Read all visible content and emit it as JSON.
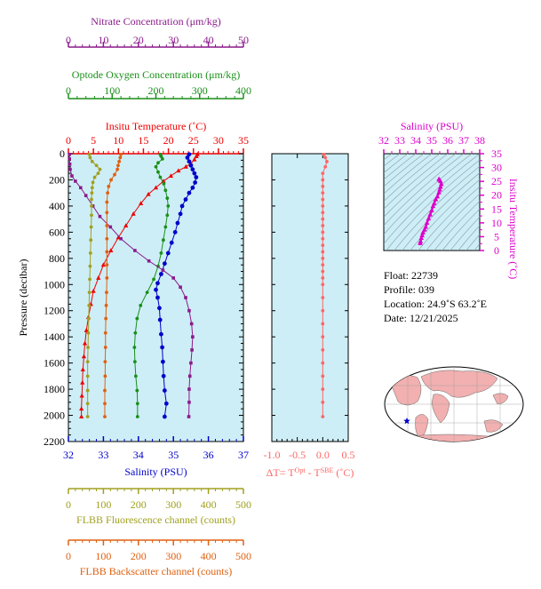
{
  "chart_data": {
    "type": "scatter",
    "main_profile": {
      "ylabel": "Pressure (decibar)",
      "y_ticks": [
        0,
        200,
        400,
        600,
        800,
        1000,
        1200,
        1400,
        1600,
        1800,
        2000,
        2200
      ],
      "ylim": [
        0,
        2200
      ],
      "axes": {
        "nitrate": {
          "label": "Nitrate Concentration (μm/kg)",
          "range": [
            0,
            50
          ],
          "ticks": [
            0,
            10,
            20,
            30,
            40,
            50
          ],
          "color": "#8b1a8b"
        },
        "oxygen": {
          "label": "Optode Oxygen Concentration (μm/kg)",
          "range": [
            0,
            400
          ],
          "ticks": [
            0,
            100,
            200,
            300,
            400
          ],
          "color": "#1a8f1a"
        },
        "temperature": {
          "label": "Insitu Temperature (˚C)",
          "range": [
            0,
            35
          ],
          "ticks": [
            0,
            5,
            10,
            15,
            20,
            25,
            30,
            35
          ],
          "color": "#ee0000"
        },
        "salinity": {
          "label": "Salinity (PSU)",
          "range": [
            32,
            37
          ],
          "ticks": [
            32,
            33,
            34,
            35,
            36,
            37
          ],
          "color": "#0000cc"
        },
        "fluorescence": {
          "label": "FLBB Fluorescence channel (counts)",
          "range": [
            0,
            500
          ],
          "ticks": [
            0,
            100,
            200,
            300,
            400,
            500
          ],
          "color": "#a0a020"
        },
        "backscatter": {
          "label": "FLBB Backscatter channel (counts)",
          "range": [
            0,
            500
          ],
          "ticks": [
            0,
            100,
            200,
            300,
            400,
            500
          ],
          "color": "#e06010"
        }
      },
      "series": [
        {
          "axis": "temperature",
          "color": "#ee0000",
          "points": [
            [
              25.8,
              5
            ],
            [
              25.6,
              20
            ],
            [
              25.2,
              45
            ],
            [
              24.5,
              75
            ],
            [
              23.5,
              100
            ],
            [
              22,
              130
            ],
            [
              20.5,
              170
            ],
            [
              19,
              210
            ],
            [
              17.5,
              260
            ],
            [
              16,
              310
            ],
            [
              14.5,
              380
            ],
            [
              13,
              460
            ],
            [
              11.5,
              550
            ],
            [
              10,
              640
            ],
            [
              8.5,
              740
            ],
            [
              7,
              850
            ],
            [
              6,
              950
            ],
            [
              5,
              1050
            ],
            [
              4.5,
              1150
            ],
            [
              4,
              1250
            ],
            [
              3.6,
              1350
            ],
            [
              3.3,
              1450
            ],
            [
              3.1,
              1550
            ],
            [
              2.9,
              1650
            ],
            [
              2.8,
              1750
            ],
            [
              2.7,
              1850
            ],
            [
              2.6,
              1950
            ],
            [
              2.6,
              2010
            ]
          ]
        },
        {
          "axis": "salinity",
          "color": "#0000cc",
          "points": [
            [
              35.45,
              5
            ],
            [
              35.4,
              30
            ],
            [
              35.45,
              60
            ],
            [
              35.5,
              90
            ],
            [
              35.55,
              120
            ],
            [
              35.6,
              150
            ],
            [
              35.65,
              180
            ],
            [
              35.62,
              220
            ],
            [
              35.55,
              260
            ],
            [
              35.45,
              300
            ],
            [
              35.35,
              350
            ],
            [
              35.25,
              400
            ],
            [
              35.2,
              460
            ],
            [
              35.12,
              530
            ],
            [
              35.05,
              600
            ],
            [
              34.95,
              680
            ],
            [
              34.85,
              760
            ],
            [
              34.75,
              840
            ],
            [
              34.65,
              920
            ],
            [
              34.55,
              990
            ],
            [
              34.5,
              1040
            ],
            [
              34.55,
              1100
            ],
            [
              34.6,
              1180
            ],
            [
              34.62,
              1270
            ],
            [
              34.65,
              1380
            ],
            [
              34.68,
              1480
            ],
            [
              34.7,
              1590
            ],
            [
              34.72,
              1700
            ],
            [
              34.75,
              1810
            ],
            [
              34.8,
              1910
            ],
            [
              34.75,
              2010
            ]
          ]
        },
        {
          "axis": "oxygen",
          "color": "#1a8f1a",
          "points": [
            [
              210,
              5
            ],
            [
              212,
              20
            ],
            [
              215,
              40
            ],
            [
              205,
              70
            ],
            [
              200,
              100
            ],
            [
              205,
              140
            ],
            [
              210,
              180
            ],
            [
              218,
              230
            ],
            [
              222,
              280
            ],
            [
              226,
              340
            ],
            [
              228,
              400
            ],
            [
              226,
              470
            ],
            [
              222,
              560
            ],
            [
              217,
              660
            ],
            [
              212,
              760
            ],
            [
              205,
              860
            ],
            [
              195,
              960
            ],
            [
              180,
              1060
            ],
            [
              165,
              1160
            ],
            [
              157,
              1260
            ],
            [
              153,
              1370
            ],
            [
              151,
              1480
            ],
            [
              152,
              1590
            ],
            [
              154,
              1700
            ],
            [
              157,
              1810
            ],
            [
              158,
              1910
            ],
            [
              158,
              2010
            ]
          ]
        },
        {
          "axis": "nitrate",
          "color": "#8b1a8b",
          "points": [
            [
              0.3,
              5
            ],
            [
              0.3,
              40
            ],
            [
              0.4,
              80
            ],
            [
              0.5,
              120
            ],
            [
              1,
              170
            ],
            [
              2,
              210
            ],
            [
              3.5,
              260
            ],
            [
              5,
              320
            ],
            [
              7,
              400
            ],
            [
              9,
              480
            ],
            [
              12,
              560
            ],
            [
              15,
              650
            ],
            [
              19,
              740
            ],
            [
              23,
              820
            ],
            [
              27,
              890
            ],
            [
              30,
              950
            ],
            [
              32,
              1020
            ],
            [
              33.5,
              1100
            ],
            [
              34.5,
              1200
            ],
            [
              35.2,
              1300
            ],
            [
              35.5,
              1400
            ],
            [
              35.3,
              1500
            ],
            [
              35,
              1600
            ],
            [
              34.7,
              1700
            ],
            [
              34.5,
              1800
            ],
            [
              34.5,
              1900
            ],
            [
              34.4,
              2010
            ]
          ]
        },
        {
          "axis": "fluorescence",
          "color": "#a0a020",
          "points": [
            [
              60,
              5
            ],
            [
              62,
              30
            ],
            [
              68,
              60
            ],
            [
              80,
              90
            ],
            [
              90,
              120
            ],
            [
              85,
              150
            ],
            [
              75,
              180
            ],
            [
              70,
              220
            ],
            [
              68,
              260
            ],
            [
              67,
              300
            ],
            [
              66,
              350
            ],
            [
              66,
              400
            ],
            [
              66,
              470
            ],
            [
              65,
              560
            ],
            [
              64,
              660
            ],
            [
              63,
              760
            ],
            [
              62,
              860
            ],
            [
              61,
              960
            ],
            [
              60,
              1060
            ],
            [
              59,
              1160
            ],
            [
              58,
              1260
            ],
            [
              57,
              1370
            ],
            [
              56,
              1480
            ],
            [
              55,
              1590
            ],
            [
              55,
              1700
            ],
            [
              55,
              1810
            ],
            [
              55,
              1910
            ],
            [
              55,
              2010
            ]
          ]
        },
        {
          "axis": "backscatter",
          "color": "#e06010",
          "points": [
            [
              150,
              5
            ],
            [
              148,
              30
            ],
            [
              145,
              60
            ],
            [
              142,
              90
            ],
            [
              140,
              120
            ],
            [
              132,
              160
            ],
            [
              122,
              200
            ],
            [
              115,
              250
            ],
            [
              112,
              300
            ],
            [
              110,
              370
            ],
            [
              110,
              450
            ],
            [
              110,
              550
            ],
            [
              110,
              650
            ],
            [
              110,
              750
            ],
            [
              110,
              850
            ],
            [
              110,
              950
            ],
            [
              109,
              1060
            ],
            [
              108,
              1160
            ],
            [
              107,
              1260
            ],
            [
              106,
              1370
            ],
            [
              106,
              1480
            ],
            [
              105,
              1590
            ],
            [
              105,
              1700
            ],
            [
              104,
              1810
            ],
            [
              104,
              1910
            ],
            [
              104,
              2010
            ]
          ]
        }
      ]
    },
    "delta_profile": {
      "xlabel": "ΔT= T",
      "xlabel_sup1": "Opt",
      "xlabel_mid": " - T",
      "xlabel_sup2": "SBE",
      "xlabel_end": " (˚C)",
      "xlim": [
        -1.0,
        0.5
      ],
      "ticks": [
        "-1.0",
        "-0.5",
        "0.0",
        "0.5"
      ],
      "tick_values": [
        -1.0,
        -0.5,
        0.0,
        0.5
      ],
      "color": "#ff6666",
      "points": [
        [
          0.02,
          5
        ],
        [
          0.05,
          30
        ],
        [
          0.08,
          60
        ],
        [
          0.05,
          100
        ],
        [
          0.0,
          150
        ],
        [
          0.0,
          200
        ],
        [
          0.0,
          250
        ],
        [
          0.0,
          300
        ],
        [
          0.0,
          350
        ],
        [
          0.0,
          400
        ],
        [
          0.0,
          450
        ],
        [
          0.0,
          500
        ],
        [
          0.0,
          550
        ],
        [
          0.0,
          600
        ],
        [
          0.0,
          650
        ],
        [
          0.0,
          700
        ],
        [
          0.0,
          750
        ],
        [
          0.0,
          800
        ],
        [
          0.0,
          850
        ],
        [
          0.0,
          900
        ],
        [
          0.0,
          950
        ],
        [
          0.0,
          1000
        ],
        [
          0.0,
          1100
        ],
        [
          0.0,
          1200
        ],
        [
          0.0,
          1300
        ],
        [
          0.0,
          1400
        ],
        [
          0.0,
          1500
        ],
        [
          0.0,
          1600
        ],
        [
          0.0,
          1700
        ],
        [
          0.0,
          1800
        ],
        [
          0.0,
          1900
        ],
        [
          0.0,
          2010
        ]
      ]
    },
    "ts_diagram": {
      "xlabel": "Salinity (PSU)",
      "ylabel": "Insitu Temperature (˚C)",
      "x_ticks": [
        32,
        33,
        34,
        35,
        36,
        37,
        38
      ],
      "y_ticks": [
        0,
        5,
        10,
        15,
        20,
        25,
        30,
        35
      ],
      "xlim": [
        32,
        38
      ],
      "ylim": [
        0,
        35
      ],
      "color": "#dd00cc",
      "points": [
        [
          34.28,
          2.6
        ],
        [
          34.3,
          3.3
        ],
        [
          34.35,
          4.5
        ],
        [
          34.4,
          5.5
        ],
        [
          34.45,
          6.5
        ],
        [
          34.55,
          7.5
        ],
        [
          34.62,
          8.5
        ],
        [
          34.7,
          10
        ],
        [
          34.8,
          11.5
        ],
        [
          34.9,
          13
        ],
        [
          35.0,
          14.5
        ],
        [
          35.08,
          16
        ],
        [
          35.15,
          17
        ],
        [
          35.25,
          18.5
        ],
        [
          35.35,
          19.5
        ],
        [
          35.45,
          21
        ],
        [
          35.5,
          22
        ],
        [
          35.55,
          23
        ],
        [
          35.6,
          24
        ],
        [
          35.55,
          25
        ],
        [
          35.5,
          25.5
        ],
        [
          35.45,
          25.8
        ]
      ]
    },
    "info": {
      "float_label": "Float:",
      "float_value": "22739",
      "profile_label": "Profile:",
      "profile_value": "039",
      "location_label": "Location:",
      "location_value": "24.9˚S  63.2˚E",
      "date_label": "Date:",
      "date_value": "12/21/2025"
    },
    "map": {
      "marker": "star",
      "marker_color": "#0000cc",
      "land_color": "#f2b0b0",
      "ocean_color": "#ffffff"
    }
  }
}
